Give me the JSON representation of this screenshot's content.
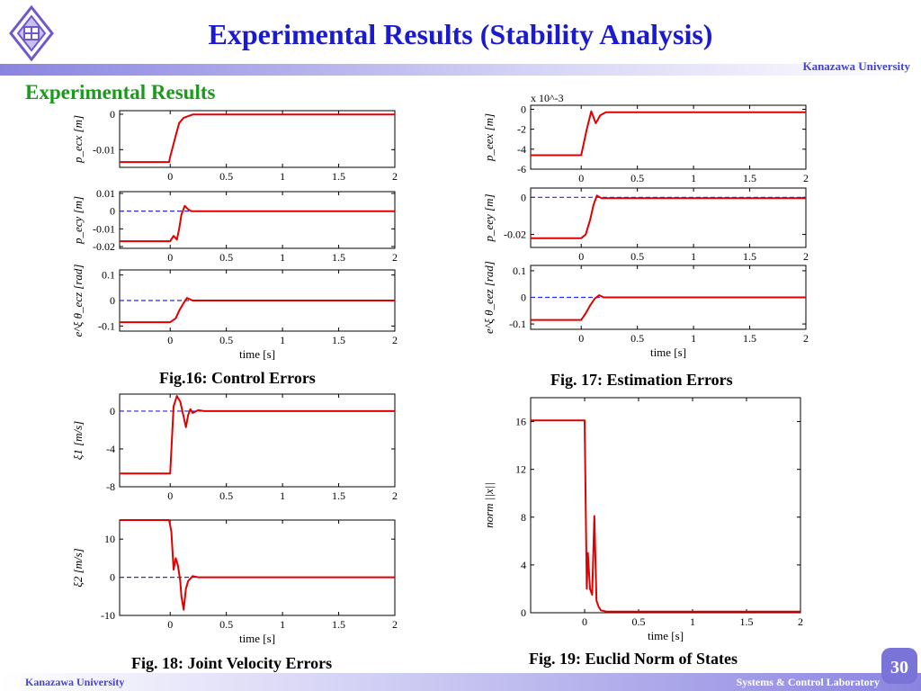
{
  "header": {
    "title": "Experimental Results (Stability Analysis)",
    "university": "Kanazawa University",
    "section_title": "Experimental Results"
  },
  "captions": {
    "fig16": "Fig.16: Control Errors",
    "fig17": "Fig. 17: Estimation Errors",
    "fig18": "Fig. 18: Joint Velocity Errors",
    "fig19": "Fig. 19: Euclid Norm of States"
  },
  "footer": {
    "left": "Kanazawa University",
    "right": "Systems & Control Laboratory",
    "page": "30"
  },
  "colors": {
    "signal": "#e00000",
    "reference": "#2a2ae0",
    "title": "#1a1ad0",
    "section": "#1a9a1a"
  },
  "chart_data": [
    {
      "id": "fig16a",
      "type": "line",
      "ylabel": "p_ecx [m]",
      "xlabel": "",
      "xlim": [
        -0.45,
        2
      ],
      "ylim": [
        -0.015,
        0.001
      ],
      "yticks": [
        0,
        -0.01
      ],
      "ytick_labels": [
        "0",
        "-0.01"
      ],
      "xticks": [
        0,
        0.5,
        1,
        1.5,
        2
      ],
      "xtick_labels": [
        "0",
        "0.5",
        "1",
        "1.5",
        "2"
      ],
      "reference": null,
      "series": [
        {
          "x": [
            -0.45,
            -0.01,
            0.0,
            0.05,
            0.08,
            0.12,
            0.2,
            2
          ],
          "y": [
            -0.0135,
            -0.0135,
            -0.012,
            -0.006,
            -0.0025,
            -0.001,
            -0.0001,
            -0.0001
          ]
        }
      ]
    },
    {
      "id": "fig16b",
      "type": "line",
      "ylabel": "p_ecy [m]",
      "xlabel": "",
      "xlim": [
        -0.45,
        2
      ],
      "ylim": [
        -0.021,
        0.011
      ],
      "yticks": [
        0.01,
        0,
        -0.01,
        -0.02
      ],
      "ytick_labels": [
        "0.01",
        "0",
        "-0.01",
        "-0.02"
      ],
      "xticks": [
        0,
        0.5,
        1,
        1.5,
        2
      ],
      "xtick_labels": [
        "0",
        "0.5",
        "1",
        "1.5",
        "2"
      ],
      "reference": 0,
      "series": [
        {
          "x": [
            -0.45,
            0.0,
            0.03,
            0.06,
            0.08,
            0.1,
            0.13,
            0.16,
            0.19,
            0.22,
            2
          ],
          "y": [
            -0.017,
            -0.017,
            -0.014,
            -0.016,
            -0.01,
            -0.002,
            0.003,
            0.001,
            0.0,
            0.0,
            0.0
          ]
        }
      ]
    },
    {
      "id": "fig16c",
      "type": "line",
      "ylabel": "e^ξ θ_ecz [rad]",
      "xlabel": "time [s]",
      "xlim": [
        -0.45,
        2
      ],
      "ylim": [
        -0.12,
        0.12
      ],
      "yticks": [
        0.1,
        0,
        -0.1
      ],
      "ytick_labels": [
        "0.1",
        "0",
        "-0.1"
      ],
      "xticks": [
        0,
        0.5,
        1,
        1.5,
        2
      ],
      "xtick_labels": [
        "0",
        "0.5",
        "1",
        "1.5",
        "2"
      ],
      "reference": 0,
      "series": [
        {
          "x": [
            -0.45,
            0.0,
            0.05,
            0.08,
            0.12,
            0.15,
            0.2,
            2
          ],
          "y": [
            -0.085,
            -0.085,
            -0.07,
            -0.04,
            -0.01,
            0.01,
            0.0,
            0.0
          ]
        }
      ]
    },
    {
      "id": "fig17a",
      "type": "line",
      "ylabel": "p_eex [m]",
      "xlabel": "",
      "axis_multiplier": "x 10^-3",
      "xlim": [
        -0.45,
        2
      ],
      "ylim": [
        -6,
        0.4
      ],
      "yticks": [
        0,
        -2,
        -4,
        -6
      ],
      "ytick_labels": [
        "0",
        "-2",
        "-4",
        "-6"
      ],
      "xticks": [
        0,
        0.5,
        1,
        1.5,
        2
      ],
      "xtick_labels": [
        "0",
        "0.5",
        "1",
        "1.5",
        "2"
      ],
      "reference": null,
      "series": [
        {
          "x": [
            -0.45,
            0.0,
            0.05,
            0.09,
            0.13,
            0.17,
            0.22,
            2
          ],
          "y": [
            -4.6,
            -4.6,
            -2.0,
            -0.2,
            -1.4,
            -0.6,
            -0.3,
            -0.3
          ]
        }
      ]
    },
    {
      "id": "fig17b",
      "type": "line",
      "ylabel": "p_eey [m]",
      "xlabel": "",
      "xlim": [
        -0.45,
        2
      ],
      "ylim": [
        -0.027,
        0.005
      ],
      "yticks": [
        0,
        -0.02
      ],
      "ytick_labels": [
        "0",
        "-0.02"
      ],
      "xticks": [
        0,
        0.5,
        1,
        1.5,
        2
      ],
      "xtick_labels": [
        "0",
        "0.5",
        "1",
        "1.5",
        "2"
      ],
      "reference": 0,
      "series": [
        {
          "x": [
            -0.45,
            0.0,
            0.04,
            0.08,
            0.11,
            0.14,
            0.18,
            2
          ],
          "y": [
            -0.022,
            -0.022,
            -0.02,
            -0.012,
            -0.004,
            0.001,
            -0.0005,
            -0.0005
          ]
        }
      ]
    },
    {
      "id": "fig17c",
      "type": "line",
      "ylabel": "e^ξ θ_eez [rad]",
      "xlabel": "time [s]",
      "xlim": [
        -0.45,
        2
      ],
      "ylim": [
        -0.12,
        0.12
      ],
      "yticks": [
        0.1,
        0,
        -0.1
      ],
      "ytick_labels": [
        "0.1",
        "0",
        "-0.1"
      ],
      "xticks": [
        0,
        0.5,
        1,
        1.5,
        2
      ],
      "xtick_labels": [
        "0",
        "0.5",
        "1",
        "1.5",
        "2"
      ],
      "reference": 0,
      "series": [
        {
          "x": [
            -0.45,
            0.0,
            0.04,
            0.08,
            0.12,
            0.16,
            0.2,
            2
          ],
          "y": [
            -0.085,
            -0.085,
            -0.06,
            -0.03,
            -0.005,
            0.008,
            0.0,
            0.0
          ]
        }
      ]
    },
    {
      "id": "fig18a",
      "type": "line",
      "ylabel": "ξ1 [m/s]",
      "xlabel": "",
      "xlim": [
        -0.45,
        2
      ],
      "ylim": [
        -8,
        1.8
      ],
      "yticks": [
        0,
        -4,
        -8
      ],
      "ytick_labels": [
        "0",
        "-4",
        "-8"
      ],
      "xticks": [
        0,
        0.5,
        1,
        1.5,
        2
      ],
      "xtick_labels": [
        "0",
        "0.5",
        "1",
        "1.5",
        "2"
      ],
      "reference": 0,
      "series": [
        {
          "x": [
            -0.45,
            0.0,
            0.03,
            0.06,
            0.09,
            0.12,
            0.14,
            0.16,
            0.18,
            0.2,
            0.25,
            0.3,
            2
          ],
          "y": [
            -6.6,
            -6.6,
            0.5,
            1.6,
            1.0,
            -0.6,
            -1.7,
            -0.4,
            0.2,
            -0.2,
            0.1,
            0.0,
            0.0
          ]
        }
      ]
    },
    {
      "id": "fig18b",
      "type": "line",
      "ylabel": "ξ2 [m/s]",
      "xlabel": "time [s]",
      "xlim": [
        -0.45,
        2
      ],
      "ylim": [
        -10,
        15
      ],
      "yticks": [
        10,
        0,
        -10
      ],
      "ytick_labels": [
        "10",
        "0",
        "-10"
      ],
      "xticks": [
        0,
        0.5,
        1,
        1.5,
        2
      ],
      "xtick_labels": [
        "0",
        "0.5",
        "1",
        "1.5",
        "2"
      ],
      "reference": 0,
      "series": [
        {
          "x": [
            -0.45,
            -0.01,
            0.01,
            0.03,
            0.05,
            0.07,
            0.09,
            0.1,
            0.12,
            0.14,
            0.16,
            0.2,
            0.25,
            2
          ],
          "y": [
            15,
            15,
            12,
            2,
            5,
            3,
            -1,
            -5,
            -8.5,
            -3,
            -1,
            0.3,
            0,
            0
          ]
        }
      ]
    },
    {
      "id": "fig19",
      "type": "line",
      "ylabel": "norm ||x||",
      "xlabel": "time [s]",
      "xlim": [
        -0.5,
        2
      ],
      "ylim": [
        0,
        18
      ],
      "yticks": [
        0,
        4,
        8,
        12,
        16
      ],
      "ytick_labels": [
        "0",
        "4",
        "8",
        "12",
        "16"
      ],
      "xticks": [
        0,
        0.5,
        1,
        1.5,
        2
      ],
      "xtick_labels": [
        "0",
        "0.5",
        "1",
        "1.5",
        "2"
      ],
      "reference": null,
      "series": [
        {
          "x": [
            -0.5,
            0.0,
            0.02,
            0.03,
            0.05,
            0.07,
            0.09,
            0.11,
            0.13,
            0.15,
            0.2,
            2
          ],
          "y": [
            16.1,
            16.1,
            2.0,
            5.0,
            2.0,
            1.5,
            8.1,
            1.0,
            0.5,
            0.2,
            0.1,
            0.1
          ]
        }
      ]
    }
  ]
}
